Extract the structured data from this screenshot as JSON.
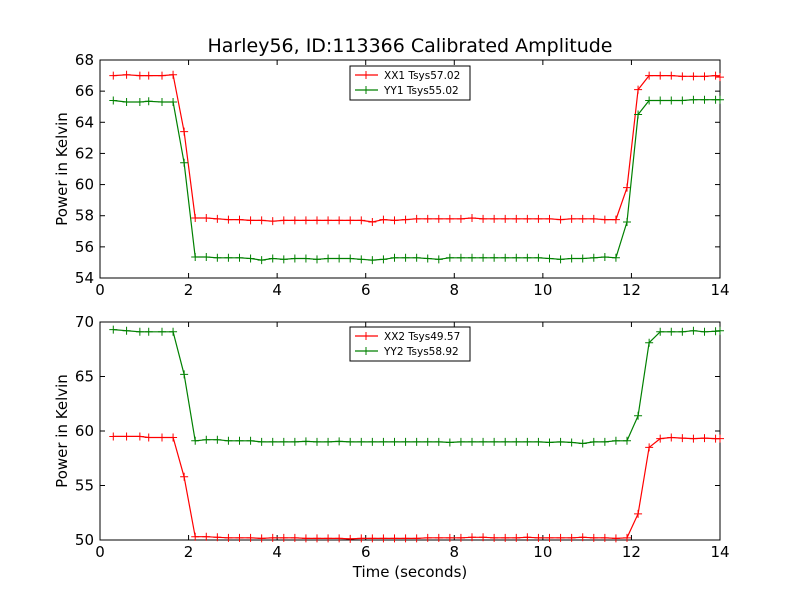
{
  "title": "Harley56, ID:113366 Calibrated Amplitude",
  "chart_data": [
    {
      "type": "line",
      "title": "Harley56, ID:113366 Calibrated Amplitude",
      "xlabel": "",
      "ylabel": "Power in Kelvin",
      "xlim": [
        0,
        14
      ],
      "ylim": [
        54,
        68
      ],
      "xticks": [
        "0",
        "2",
        "4",
        "6",
        "8",
        "10",
        "12",
        "14"
      ],
      "yticks": [
        "54",
        "56",
        "58",
        "60",
        "62",
        "64",
        "66",
        "68"
      ],
      "grid": false,
      "legend_position": "top-center",
      "x": [
        0.3,
        0.6,
        0.9,
        1.1,
        1.4,
        1.65,
        1.9,
        2.15,
        2.4,
        2.65,
        2.9,
        3.15,
        3.4,
        3.65,
        3.9,
        4.15,
        4.4,
        4.65,
        4.9,
        5.15,
        5.4,
        5.65,
        5.9,
        6.15,
        6.4,
        6.65,
        6.9,
        7.15,
        7.4,
        7.65,
        7.9,
        8.15,
        8.4,
        8.65,
        8.9,
        9.15,
        9.4,
        9.65,
        9.9,
        10.15,
        10.4,
        10.65,
        10.9,
        11.15,
        11.4,
        11.65,
        11.9,
        12.15,
        12.4,
        12.65,
        12.9,
        13.15,
        13.4,
        13.65,
        13.9,
        14.0
      ],
      "series": [
        {
          "name": "XX1 Tsys57.02",
          "color": "#ff0000",
          "values": [
            67.0,
            67.05,
            67.0,
            67.0,
            67.0,
            67.05,
            63.4,
            57.85,
            57.85,
            57.8,
            57.75,
            57.75,
            57.7,
            57.7,
            57.65,
            57.7,
            57.7,
            57.7,
            57.7,
            57.7,
            57.7,
            57.7,
            57.7,
            57.6,
            57.75,
            57.7,
            57.75,
            57.8,
            57.8,
            57.8,
            57.8,
            57.8,
            57.85,
            57.8,
            57.8,
            57.8,
            57.8,
            57.8,
            57.8,
            57.8,
            57.75,
            57.8,
            57.8,
            57.8,
            57.75,
            57.75,
            59.8,
            66.1,
            67.0,
            67.0,
            67.0,
            66.95,
            66.95,
            66.95,
            67.0,
            66.9
          ]
        },
        {
          "name": "YY1 Tsys55.02",
          "color": "#008000",
          "values": [
            65.4,
            65.3,
            65.3,
            65.35,
            65.3,
            65.3,
            61.4,
            55.35,
            55.35,
            55.3,
            55.3,
            55.3,
            55.25,
            55.15,
            55.25,
            55.2,
            55.25,
            55.25,
            55.2,
            55.25,
            55.25,
            55.25,
            55.2,
            55.15,
            55.2,
            55.3,
            55.3,
            55.3,
            55.25,
            55.2,
            55.3,
            55.3,
            55.3,
            55.3,
            55.3,
            55.3,
            55.3,
            55.3,
            55.3,
            55.25,
            55.2,
            55.25,
            55.25,
            55.3,
            55.35,
            55.3,
            57.6,
            64.5,
            65.4,
            65.4,
            65.4,
            65.4,
            65.45,
            65.45,
            65.45,
            65.45
          ]
        }
      ]
    },
    {
      "type": "line",
      "title": "",
      "xlabel": "Time (seconds)",
      "ylabel": "Power in Kelvin",
      "xlim": [
        0,
        14
      ],
      "ylim": [
        50,
        70
      ],
      "xticks": [
        "0",
        "2",
        "4",
        "6",
        "8",
        "10",
        "12",
        "14"
      ],
      "yticks": [
        "50",
        "55",
        "60",
        "65",
        "70"
      ],
      "grid": false,
      "legend_position": "top-center",
      "x": [
        0.3,
        0.6,
        0.9,
        1.1,
        1.4,
        1.65,
        1.9,
        2.15,
        2.4,
        2.65,
        2.9,
        3.15,
        3.4,
        3.65,
        3.9,
        4.15,
        4.4,
        4.65,
        4.9,
        5.15,
        5.4,
        5.65,
        5.9,
        6.15,
        6.4,
        6.65,
        6.9,
        7.15,
        7.4,
        7.65,
        7.9,
        8.15,
        8.4,
        8.65,
        8.9,
        9.15,
        9.4,
        9.65,
        9.9,
        10.15,
        10.4,
        10.65,
        10.9,
        11.15,
        11.4,
        11.65,
        11.9,
        12.15,
        12.4,
        12.65,
        12.9,
        13.15,
        13.4,
        13.65,
        13.9,
        14.0
      ],
      "series": [
        {
          "name": "XX2 Tsys49.57",
          "color": "#ff0000",
          "values": [
            59.5,
            59.5,
            59.5,
            59.4,
            59.4,
            59.4,
            55.8,
            50.3,
            50.3,
            50.25,
            50.2,
            50.2,
            50.2,
            50.15,
            50.2,
            50.2,
            50.2,
            50.15,
            50.15,
            50.15,
            50.15,
            50.1,
            50.15,
            50.15,
            50.15,
            50.15,
            50.15,
            50.15,
            50.2,
            50.2,
            50.2,
            50.2,
            50.25,
            50.25,
            50.2,
            50.2,
            50.2,
            50.25,
            50.2,
            50.2,
            50.2,
            50.2,
            50.25,
            50.2,
            50.2,
            50.15,
            50.2,
            52.4,
            58.5,
            59.3,
            59.4,
            59.35,
            59.3,
            59.35,
            59.3,
            59.3
          ]
        },
        {
          "name": "YY2 Tsys58.92",
          "color": "#008000",
          "values": [
            69.3,
            69.2,
            69.1,
            69.1,
            69.1,
            69.1,
            65.2,
            59.1,
            59.2,
            59.2,
            59.1,
            59.1,
            59.1,
            59.0,
            59.0,
            59.0,
            59.0,
            59.05,
            59.0,
            59.0,
            59.05,
            59.0,
            59.0,
            59.0,
            59.0,
            59.0,
            59.0,
            59.0,
            59.0,
            59.0,
            58.95,
            59.0,
            59.0,
            59.0,
            59.0,
            59.0,
            59.0,
            59.0,
            59.0,
            58.95,
            59.0,
            58.95,
            58.85,
            59.0,
            59.0,
            59.1,
            59.1,
            61.4,
            68.1,
            69.1,
            69.1,
            69.1,
            69.2,
            69.1,
            69.15,
            69.2
          ]
        }
      ]
    }
  ]
}
